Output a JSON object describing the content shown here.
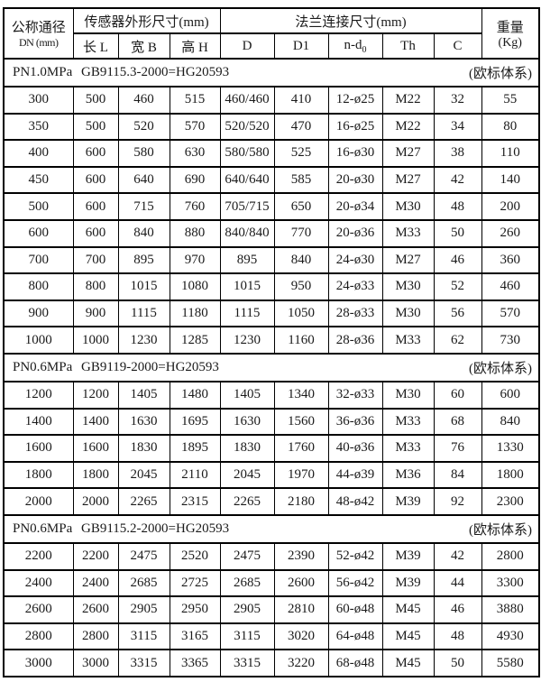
{
  "header": {
    "dn_line1": "公称通径",
    "dn_line2": "DN (mm)",
    "sensor_group": "传感器外形尺寸(mm)",
    "flange_group": "法兰连接尺寸(mm)",
    "weight_line1": "重量",
    "weight_line2": "(Kg)",
    "sub_l": "长 L",
    "sub_b": "宽 B",
    "sub_h": "高 H",
    "sub_d": "D",
    "sub_d1": "D1",
    "nd_main": "n-d",
    "nd_sub": "0",
    "sub_th": "Th",
    "sub_c": "C"
  },
  "sections": [
    {
      "pressure": "PN1.0MPa",
      "standard": "GB9115.3-2000=HG20593",
      "system": "(欧标体系)",
      "rows": [
        [
          "300",
          "500",
          "460",
          "515",
          "460/460",
          "410",
          "12-ø25",
          "M22",
          "32",
          "55"
        ],
        [
          "350",
          "500",
          "520",
          "570",
          "520/520",
          "470",
          "16-ø25",
          "M22",
          "34",
          "80"
        ],
        [
          "400",
          "600",
          "580",
          "630",
          "580/580",
          "525",
          "16-ø30",
          "M27",
          "38",
          "110"
        ],
        [
          "450",
          "600",
          "640",
          "690",
          "640/640",
          "585",
          "20-ø30",
          "M27",
          "42",
          "140"
        ],
        [
          "500",
          "600",
          "715",
          "760",
          "705/715",
          "650",
          "20-ø34",
          "M30",
          "48",
          "200"
        ],
        [
          "600",
          "600",
          "840",
          "880",
          "840/840",
          "770",
          "20-ø36",
          "M33",
          "50",
          "260"
        ],
        [
          "700",
          "700",
          "895",
          "970",
          "895",
          "840",
          "24-ø30",
          "M27",
          "46",
          "360"
        ],
        [
          "800",
          "800",
          "1015",
          "1080",
          "1015",
          "950",
          "24-ø33",
          "M30",
          "52",
          "460"
        ],
        [
          "900",
          "900",
          "1115",
          "1180",
          "1115",
          "1050",
          "28-ø33",
          "M30",
          "56",
          "570"
        ],
        [
          "1000",
          "1000",
          "1230",
          "1285",
          "1230",
          "1160",
          "28-ø36",
          "M33",
          "62",
          "730"
        ]
      ]
    },
    {
      "pressure": "PN0.6MPa",
      "standard": "GB9119-2000=HG20593",
      "system": "(欧标体系)",
      "rows": [
        [
          "1200",
          "1200",
          "1405",
          "1480",
          "1405",
          "1340",
          "32-ø33",
          "M30",
          "60",
          "600"
        ],
        [
          "1400",
          "1400",
          "1630",
          "1695",
          "1630",
          "1560",
          "36-ø36",
          "M33",
          "68",
          "840"
        ],
        [
          "1600",
          "1600",
          "1830",
          "1895",
          "1830",
          "1760",
          "40-ø36",
          "M33",
          "76",
          "1330"
        ],
        [
          "1800",
          "1800",
          "2045",
          "2110",
          "2045",
          "1970",
          "44-ø39",
          "M36",
          "84",
          "1800"
        ],
        [
          "2000",
          "2000",
          "2265",
          "2315",
          "2265",
          "2180",
          "48-ø42",
          "M39",
          "92",
          "2300"
        ]
      ]
    },
    {
      "pressure": "PN0.6MPa",
      "standard": "GB9115.2-2000=HG20593",
      "system": "(欧标体系)",
      "rows": [
        [
          "2200",
          "2200",
          "2475",
          "2520",
          "2475",
          "2390",
          "52-ø42",
          "M39",
          "42",
          "2800"
        ],
        [
          "2400",
          "2400",
          "2685",
          "2725",
          "2685",
          "2600",
          "56-ø42",
          "M39",
          "44",
          "3300"
        ],
        [
          "2600",
          "2600",
          "2905",
          "2950",
          "2905",
          "2810",
          "60-ø48",
          "M45",
          "46",
          "3880"
        ],
        [
          "2800",
          "2800",
          "3115",
          "3165",
          "3115",
          "3020",
          "64-ø48",
          "M45",
          "48",
          "4930"
        ],
        [
          "3000",
          "3000",
          "3315",
          "3365",
          "3315",
          "3220",
          "68-ø48",
          "M45",
          "50",
          "5580"
        ]
      ]
    }
  ]
}
